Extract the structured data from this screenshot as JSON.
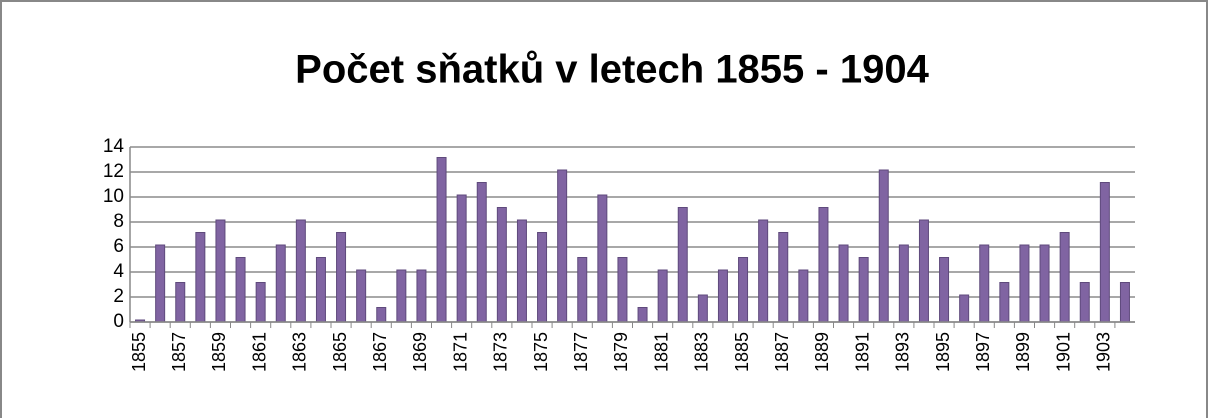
{
  "chart_data": {
    "type": "bar",
    "title": "Počet sňatků v letech 1855 - 1904",
    "categories": [
      "1855",
      null,
      "1857",
      null,
      "1859",
      null,
      "1861",
      null,
      "1863",
      null,
      "1865",
      null,
      "1867",
      null,
      "1869",
      null,
      "1871",
      null,
      "1873",
      null,
      "1875",
      null,
      "1877",
      null,
      "1879",
      null,
      "1881",
      null,
      "1883",
      null,
      "1885",
      null,
      "1887",
      null,
      "1889",
      null,
      "1891",
      null,
      "1893",
      null,
      "1895",
      null,
      "1897",
      null,
      "1899",
      null,
      "1901",
      null,
      "1903",
      null
    ],
    "values": [
      0,
      6,
      3,
      7,
      8,
      5,
      3,
      6,
      8,
      5,
      7,
      4,
      1,
      4,
      4,
      13,
      10,
      11,
      9,
      8,
      7,
      12,
      5,
      10,
      5,
      1,
      4,
      9,
      2,
      4,
      5,
      8,
      7,
      4,
      9,
      6,
      5,
      12,
      6,
      8,
      5,
      2,
      6,
      3,
      6,
      6,
      7,
      3,
      11,
      3
    ],
    "color": "#8064a2",
    "ylim": [
      0,
      14
    ],
    "yticks": [
      0,
      2,
      4,
      6,
      8,
      10,
      12,
      14
    ],
    "grid": true
  }
}
